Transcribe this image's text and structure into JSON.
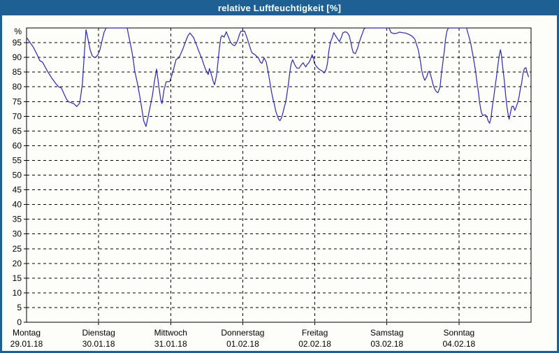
{
  "window": {
    "title": "relative Luftfeuchtigkeit [%]",
    "titlebar_color": "#1e5f94",
    "frame_color": "#1e5f94",
    "background_color": "#fdfdfa"
  },
  "chart_data": {
    "type": "line",
    "title": "relative Luftfeuchtigkeit [%]",
    "ylabel": "%",
    "xlabel": "",
    "ylim": [
      0,
      100
    ],
    "xlim": [
      0,
      168
    ],
    "x_unit": "hours since Monday 00:00",
    "grid": "dashed-black",
    "legend": "none",
    "yticks": [
      0,
      5,
      10,
      15,
      20,
      25,
      30,
      35,
      40,
      45,
      50,
      55,
      60,
      65,
      70,
      75,
      80,
      85,
      90,
      95
    ],
    "x_days": [
      {
        "name": "Montag",
        "date": "29.01.18",
        "start_hour": 0
      },
      {
        "name": "Dienstag",
        "date": "30.01.18",
        "start_hour": 24
      },
      {
        "name": "Mittwoch",
        "date": "31.01.18",
        "start_hour": 48
      },
      {
        "name": "Donnerstag",
        "date": "01.02.18",
        "start_hour": 72
      },
      {
        "name": "Freitag",
        "date": "02.02.18",
        "start_hour": 96
      },
      {
        "name": "Samstag",
        "date": "03.02.18",
        "start_hour": 120
      },
      {
        "name": "Sonntag",
        "date": "04.02.18",
        "start_hour": 144
      }
    ],
    "series": [
      {
        "name": "relative Luftfeuchtigkeit",
        "color": "#2828be",
        "points": [
          [
            0,
            96.8
          ],
          [
            1.2,
            95
          ],
          [
            2.3,
            93.4
          ],
          [
            3.5,
            91
          ],
          [
            4.4,
            88.9
          ],
          [
            5.3,
            88.4
          ],
          [
            6,
            87.1
          ],
          [
            7,
            85.2
          ],
          [
            8.4,
            83
          ],
          [
            9.8,
            81
          ],
          [
            10.7,
            80
          ],
          [
            11.6,
            79.6
          ],
          [
            12.6,
            77.3
          ],
          [
            13.3,
            75.8
          ],
          [
            14,
            74.9
          ],
          [
            14.9,
            74.6
          ],
          [
            15.8,
            74.2
          ],
          [
            16.7,
            73.3
          ],
          [
            17.7,
            74.5
          ],
          [
            18.6,
            81
          ],
          [
            19.3,
            92
          ],
          [
            19.8,
            99.4
          ],
          [
            20.5,
            96
          ],
          [
            21.2,
            92.5
          ],
          [
            21.9,
            90.5
          ],
          [
            22.8,
            89.9
          ],
          [
            23.7,
            90.8
          ],
          [
            24.4,
            92.5
          ],
          [
            25.1,
            95.5
          ],
          [
            25.8,
            98.5
          ],
          [
            26.5,
            100
          ],
          [
            30,
            100
          ],
          [
            33.5,
            100
          ],
          [
            33.7,
            99
          ],
          [
            34.4,
            95.5
          ],
          [
            35.1,
            92
          ],
          [
            35.6,
            88.7
          ],
          [
            36,
            85.5
          ],
          [
            37,
            80.8
          ],
          [
            37.7,
            76.8
          ],
          [
            38.4,
            72.5
          ],
          [
            39,
            68.5
          ],
          [
            39.8,
            66.5
          ],
          [
            40.5,
            70
          ],
          [
            41.2,
            73.5
          ],
          [
            41.9,
            77
          ],
          [
            42.6,
            82
          ],
          [
            43.3,
            86
          ],
          [
            44,
            80.5
          ],
          [
            44.7,
            75.5
          ],
          [
            45.1,
            74.3
          ],
          [
            45.8,
            79
          ],
          [
            46.5,
            81.7
          ],
          [
            47.7,
            81.8
          ],
          [
            48.4,
            84
          ],
          [
            49.1,
            86.5
          ],
          [
            49.8,
            89.3
          ],
          [
            50.7,
            89.8
          ],
          [
            51.4,
            91.3
          ],
          [
            52.1,
            93
          ],
          [
            53,
            95.5
          ],
          [
            53.7,
            97.3
          ],
          [
            54.4,
            98.3
          ],
          [
            55.6,
            96.8
          ],
          [
            56.5,
            94.5
          ],
          [
            57.4,
            92
          ],
          [
            58.4,
            89.5
          ],
          [
            59.3,
            86.8
          ],
          [
            60,
            85
          ],
          [
            60.5,
            84.2
          ],
          [
            60.9,
            86.2
          ],
          [
            61.6,
            84
          ],
          [
            62.1,
            82
          ],
          [
            62.6,
            80.7
          ],
          [
            63.3,
            84
          ],
          [
            63.7,
            88
          ],
          [
            64.2,
            93
          ],
          [
            64.7,
            96.8
          ],
          [
            65.1,
            97.4
          ],
          [
            65.8,
            96.9
          ],
          [
            66.5,
            98.7
          ],
          [
            67.2,
            97
          ],
          [
            67.9,
            95.2
          ],
          [
            68.6,
            94.3
          ],
          [
            69.3,
            94
          ],
          [
            70,
            95
          ],
          [
            70.5,
            96.4
          ],
          [
            70.9,
            97.8
          ],
          [
            71.4,
            98.9
          ],
          [
            72.6,
            98.9
          ],
          [
            73.3,
            97
          ],
          [
            74,
            94.8
          ],
          [
            74.7,
            92.5
          ],
          [
            75.1,
            91.5
          ],
          [
            76,
            91
          ],
          [
            77.2,
            89.8
          ],
          [
            77.9,
            88.3
          ],
          [
            78.4,
            88
          ],
          [
            79.1,
            89.8
          ],
          [
            79.8,
            88.5
          ],
          [
            80.2,
            86.4
          ],
          [
            80.7,
            83.6
          ],
          [
            81.2,
            80.5
          ],
          [
            81.6,
            78.1
          ],
          [
            82.1,
            75.7
          ],
          [
            82.6,
            73.7
          ],
          [
            83,
            71.7
          ],
          [
            83.5,
            70.1
          ],
          [
            84,
            68.9
          ],
          [
            84.4,
            68.5
          ],
          [
            84.9,
            69.5
          ],
          [
            85.3,
            70.9
          ],
          [
            85.8,
            73
          ],
          [
            86.3,
            74.8
          ],
          [
            86.7,
            77.5
          ],
          [
            87.2,
            81
          ],
          [
            87.7,
            85.2
          ],
          [
            88.1,
            87.8
          ],
          [
            88.6,
            89.2
          ],
          [
            89.1,
            88
          ],
          [
            89.5,
            87.2
          ],
          [
            90,
            86.4
          ],
          [
            90.7,
            86.3
          ],
          [
            91.6,
            87.6
          ],
          [
            92.1,
            88.2
          ],
          [
            92.6,
            87.3
          ],
          [
            93,
            86.8
          ],
          [
            93.5,
            87.7
          ],
          [
            93.9,
            88
          ],
          [
            94.4,
            89
          ],
          [
            94.9,
            90.3
          ],
          [
            95.1,
            90.9
          ],
          [
            95.6,
            89.5
          ],
          [
            95.8,
            88.2
          ],
          [
            96.3,
            87.2
          ],
          [
            97,
            86.4
          ],
          [
            97.7,
            85.8
          ],
          [
            98.4,
            85.4
          ],
          [
            99.1,
            84.7
          ],
          [
            99.8,
            86
          ],
          [
            100.2,
            88
          ],
          [
            100.7,
            92.4
          ],
          [
            101.2,
            95.2
          ],
          [
            101.9,
            97
          ],
          [
            102.3,
            98.4
          ],
          [
            102.8,
            97.5
          ],
          [
            103.5,
            96.4
          ],
          [
            104.2,
            95.4
          ],
          [
            104.9,
            97
          ],
          [
            105.3,
            98.3
          ],
          [
            106,
            98.7
          ],
          [
            106.7,
            98.5
          ],
          [
            107.4,
            97.5
          ],
          [
            107.9,
            95.5
          ],
          [
            108.4,
            93
          ],
          [
            108.8,
            91.6
          ],
          [
            109.5,
            91.3
          ],
          [
            110.2,
            93
          ],
          [
            110.7,
            94.8
          ],
          [
            111.4,
            97
          ],
          [
            111.9,
            98.3
          ],
          [
            112.3,
            99.5
          ],
          [
            112.8,
            100
          ],
          [
            116,
            100
          ],
          [
            120.7,
            100
          ],
          [
            121.4,
            98.4
          ],
          [
            122.3,
            98.1
          ],
          [
            123.3,
            98.2
          ],
          [
            124.2,
            98.6
          ],
          [
            125.1,
            98.4
          ],
          [
            126.1,
            98.3
          ],
          [
            127.4,
            97.8
          ],
          [
            128.4,
            97.2
          ],
          [
            129.3,
            96.2
          ],
          [
            130,
            94
          ],
          [
            130.5,
            92.4
          ],
          [
            130.9,
            90
          ],
          [
            131.2,
            88.5
          ],
          [
            131.6,
            85.5
          ],
          [
            132.1,
            83.5
          ],
          [
            132.6,
            82.2
          ],
          [
            133.3,
            83.5
          ],
          [
            133.7,
            85
          ],
          [
            134.2,
            85.3
          ],
          [
            134.9,
            82.8
          ],
          [
            135.3,
            81
          ],
          [
            135.8,
            79.5
          ],
          [
            136.5,
            78.3
          ],
          [
            137,
            78
          ],
          [
            137.7,
            80
          ],
          [
            138.1,
            84
          ],
          [
            138.6,
            88
          ],
          [
            139.1,
            92
          ],
          [
            139.5,
            96
          ],
          [
            140,
            99
          ],
          [
            140.5,
            100
          ],
          [
            143,
            100
          ],
          [
            146.5,
            100
          ],
          [
            147.2,
            97.5
          ],
          [
            147.9,
            94.8
          ],
          [
            148.6,
            91
          ],
          [
            149.1,
            88
          ],
          [
            149.5,
            85.5
          ],
          [
            150,
            81.5
          ],
          [
            150.5,
            78
          ],
          [
            150.9,
            74.5
          ],
          [
            151.4,
            71.5
          ],
          [
            151.9,
            70.2
          ],
          [
            152.3,
            70.4
          ],
          [
            152.8,
            70.5
          ],
          [
            153.3,
            69.8
          ],
          [
            153.7,
            68.5
          ],
          [
            154.2,
            67.6
          ],
          [
            154.7,
            69.5
          ],
          [
            155.1,
            73.3
          ],
          [
            155.6,
            76.5
          ],
          [
            156,
            79.8
          ],
          [
            156.5,
            83.5
          ],
          [
            157,
            87.5
          ],
          [
            157.4,
            90.5
          ],
          [
            157.8,
            92.6
          ],
          [
            158.1,
            91
          ],
          [
            158.6,
            86.4
          ],
          [
            159.1,
            82
          ],
          [
            159.5,
            77.5
          ],
          [
            160,
            73
          ],
          [
            160.5,
            69.8
          ],
          [
            160.7,
            69
          ],
          [
            161.2,
            71.5
          ],
          [
            161.6,
            73.3
          ],
          [
            162.1,
            73.4
          ],
          [
            162.6,
            72
          ],
          [
            163,
            73
          ],
          [
            163.5,
            74.5
          ],
          [
            164,
            76.5
          ],
          [
            164.4,
            79
          ],
          [
            164.9,
            81.5
          ],
          [
            165.3,
            84.5
          ],
          [
            165.8,
            86.2
          ],
          [
            166.3,
            86.5
          ],
          [
            166.7,
            84.8
          ],
          [
            167.2,
            83.3
          ]
        ]
      }
    ]
  }
}
